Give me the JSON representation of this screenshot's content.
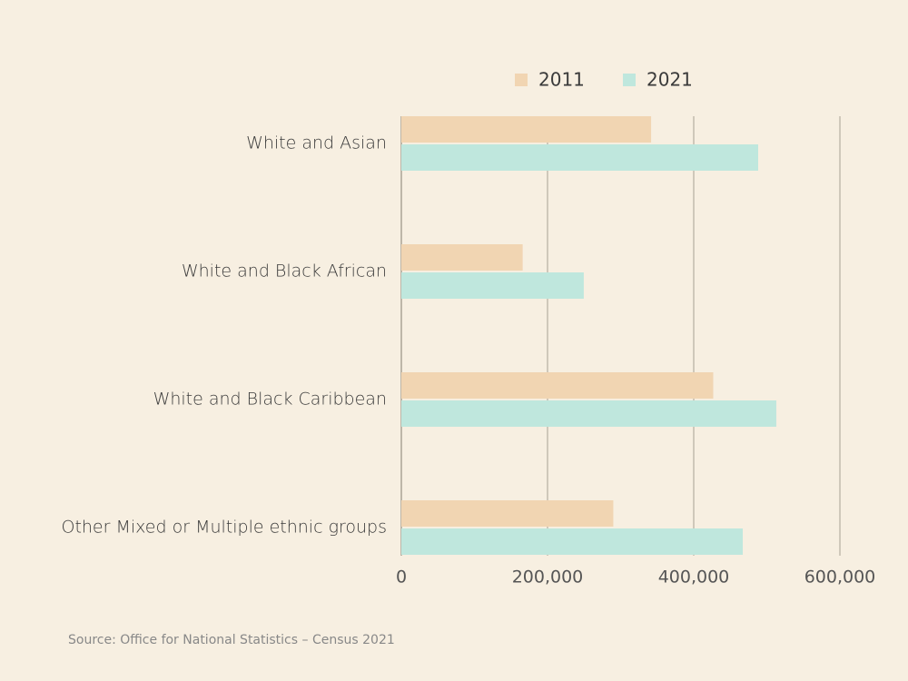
{
  "chart_data": {
    "type": "hbar",
    "categories": [
      "White and Asian",
      "White and Black African",
      "White and Black Caribbean",
      "Other Mixed or Multiple ethnic groups"
    ],
    "series": [
      {
        "name": "2011",
        "color": "#f1d5b2",
        "values": [
          341700,
          166000,
          426700,
          290000
        ]
      },
      {
        "name": "2021",
        "color": "#bfe7dd",
        "values": [
          488200,
          249600,
          513000,
          467100
        ]
      }
    ],
    "xlim": [
      0,
      600000
    ],
    "xticks": [
      0,
      {
        "value": 200000,
        "label": "200,000"
      },
      {
        "value": 400000,
        "label": "400,000"
      },
      {
        "value": 600000,
        "label": "600,000"
      }
    ],
    "grid": true,
    "source": "Source: Office for National Statistics – Census 2021"
  }
}
